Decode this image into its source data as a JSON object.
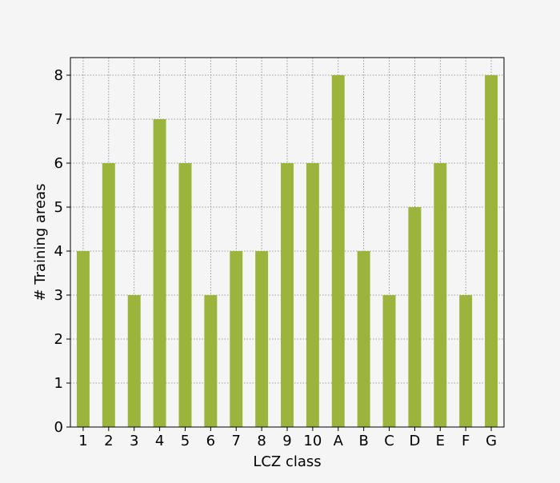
{
  "chart_data": {
    "type": "bar",
    "xlabel": "LCZ class",
    "ylabel": "# Training areas",
    "categories": [
      "1",
      "2",
      "3",
      "4",
      "5",
      "6",
      "7",
      "8",
      "9",
      "10",
      "A",
      "B",
      "C",
      "D",
      "E",
      "F",
      "G"
    ],
    "values": [
      4,
      6,
      3,
      7,
      6,
      3,
      4,
      4,
      6,
      6,
      8,
      4,
      3,
      5,
      6,
      3,
      8
    ],
    "ylim": [
      0,
      8.4
    ],
    "yticks": [
      "0",
      "1",
      "2",
      "3",
      "4",
      "5",
      "6",
      "7",
      "8"
    ],
    "grid": true,
    "bar_color": "#9ab43c",
    "background_color": "#f5f5f5",
    "grid_color": "#808080"
  }
}
